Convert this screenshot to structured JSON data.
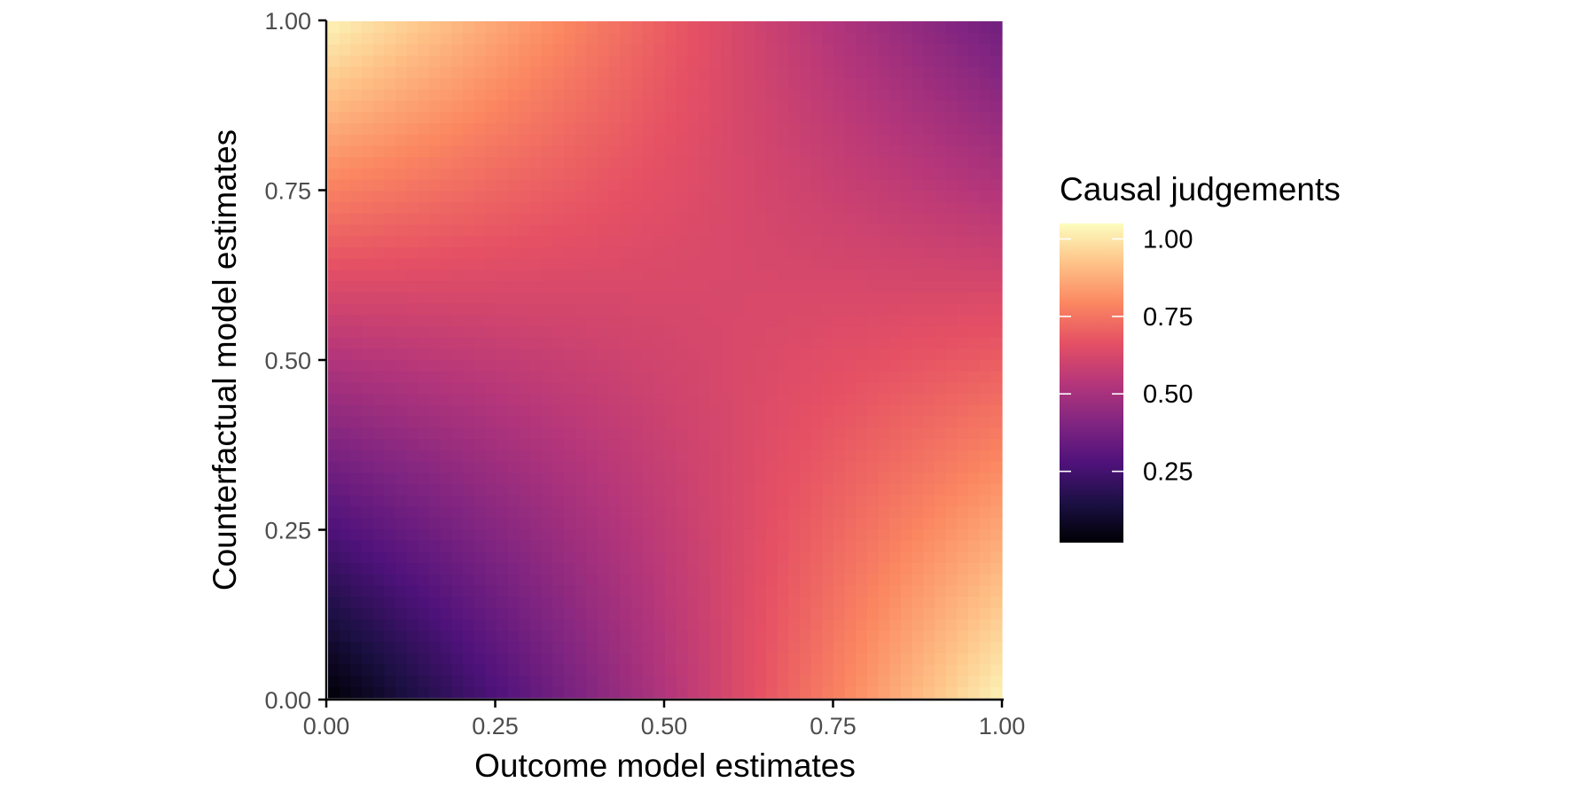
{
  "chart_data": {
    "type": "heatmap",
    "title": "",
    "xlabel": "Outcome model estimates",
    "ylabel": "Counterfactual model estimates",
    "xlim": [
      0,
      1
    ],
    "ylim": [
      0,
      1
    ],
    "x_ticks": [
      0,
      0.25,
      0.5,
      0.75,
      1
    ],
    "x_tick_labels": [
      "0.00",
      "0.25",
      "0.50",
      "0.75",
      "1.00"
    ],
    "y_ticks": [
      0,
      0.25,
      0.5,
      0.75,
      1
    ],
    "y_tick_labels": [
      "0.00",
      "0.25",
      "0.50",
      "0.75",
      "1.00"
    ],
    "grid": false,
    "colormap": "magma",
    "value_description": "Causal judgements over the unit square (outcome x, counterfactual y)",
    "corner_values": {
      "x0_y0": 0.02,
      "x1_y0": 1.03,
      "x0_y1": 1.03,
      "x1_y1": 0.36
    },
    "color_scale": {
      "title": "Causal judgements",
      "min": 0.02,
      "max": 1.05,
      "ticks": [
        0.25,
        0.5,
        0.75,
        1.0
      ],
      "tick_labels": [
        "0.25",
        "0.50",
        "0.75",
        "1.00"
      ],
      "position": "right"
    },
    "colormap_stops": [
      "#000004",
      "#1c1044",
      "#4f127b",
      "#812581",
      "#b5367a",
      "#e55064",
      "#fb8761",
      "#fec287",
      "#fcfdbf"
    ]
  }
}
